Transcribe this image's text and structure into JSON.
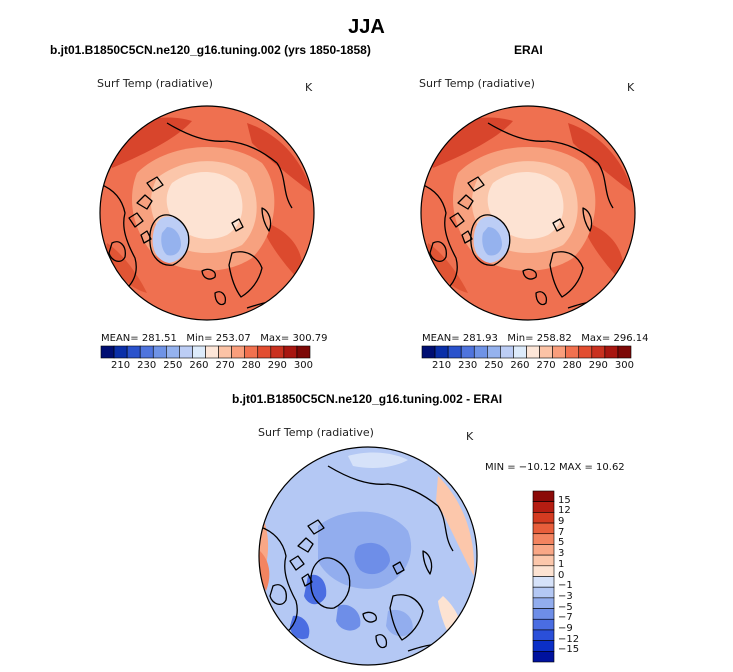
{
  "figure": {
    "season": "JJA",
    "panel_left_title": "b.jt01.B1850C5CN.ne120_g16.tuning.002 (yrs 1850-1858)",
    "panel_right_title": "ERAI",
    "panel_bottom_title": "b.jt01.B1850C5CN.ne120_g16.tuning.002 - ERAI"
  },
  "chart_data": [
    {
      "type": "heatmap",
      "projection": "north polar stereographic",
      "variable": "Surf Temp (radiative)",
      "units": "K",
      "mean_label": "MEAN=",
      "mean": "281.51",
      "min_label": "Min=",
      "min": "253.07",
      "max_label": "Max=",
      "max": "300.79",
      "colorbar": {
        "colors": [
          "#000e72",
          "#0a2fa8",
          "#2a52cc",
          "#4f74dd",
          "#6f93e6",
          "#95b2ee",
          "#bccdf5",
          "#ddebfb",
          "#fde6d8",
          "#fcc3a6",
          "#f99e7c",
          "#f1714f",
          "#e24d30",
          "#c9311f",
          "#a81610",
          "#7d0806"
        ],
        "tick_labels": [
          "210",
          "230",
          "250",
          "260",
          "270",
          "280",
          "290",
          "300"
        ]
      }
    },
    {
      "type": "heatmap",
      "projection": "north polar stereographic",
      "variable": "Surf Temp (radiative)",
      "units": "K",
      "mean_label": "MEAN=",
      "mean": "281.93",
      "min_label": "Min=",
      "min": "258.82",
      "max_label": "Max=",
      "max": "296.14",
      "colorbar": {
        "colors": [
          "#000e72",
          "#0a2fa8",
          "#2a52cc",
          "#4f74dd",
          "#6f93e6",
          "#95b2ee",
          "#bccdf5",
          "#ddebfb",
          "#fde6d8",
          "#fcc3a6",
          "#f99e7c",
          "#f1714f",
          "#e24d30",
          "#c9311f",
          "#a81610",
          "#7d0806"
        ],
        "tick_labels": [
          "210",
          "230",
          "250",
          "260",
          "270",
          "280",
          "290",
          "300"
        ]
      }
    },
    {
      "type": "heatmap",
      "projection": "north polar stereographic",
      "variable": "Surf Temp (radiative)",
      "units": "K",
      "range_text": "MIN = −10.12 MAX =  10.62",
      "min": -10.12,
      "max": 10.62,
      "colorbar": {
        "colors": [
          "#00129e",
          "#0b2fc7",
          "#2a4fd9",
          "#4a6de2",
          "#6e8ee8",
          "#92adee",
          "#b4c8f4",
          "#d6e2f9",
          "#fde3d2",
          "#fcc7ab",
          "#f9a786",
          "#f38460",
          "#e85e3b",
          "#d43b21",
          "#b51d12",
          "#8b0a08"
        ],
        "tick_labels": [
          "15",
          "12",
          "9",
          "7",
          "5",
          "3",
          "1",
          "0",
          "−1",
          "−3",
          "−5",
          "−7",
          "−9",
          "−12",
          "−15"
        ]
      }
    }
  ]
}
